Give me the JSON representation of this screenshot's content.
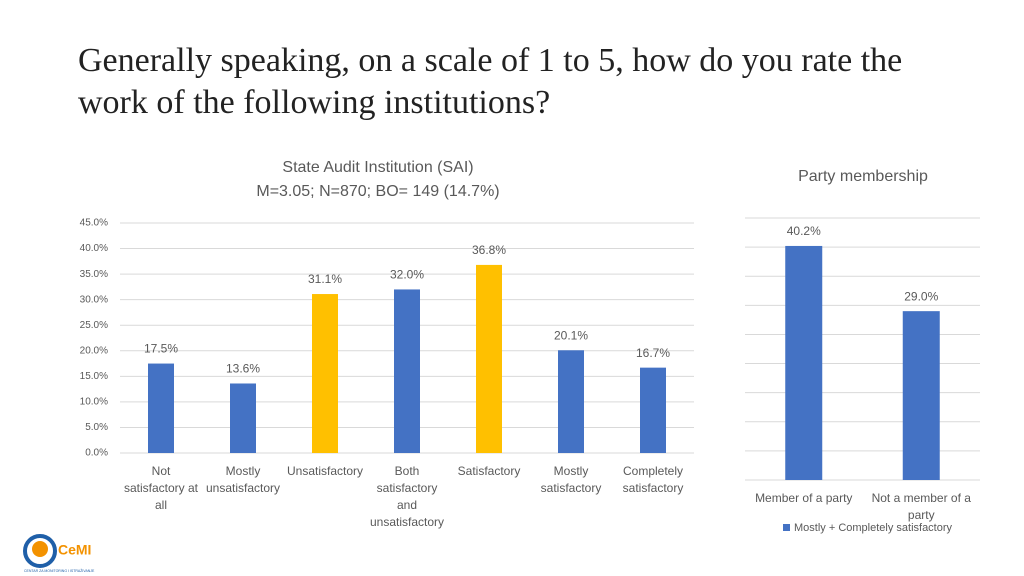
{
  "header": {
    "title": "Generally speaking, on a scale of 1 to 5, how do you rate the work of the following institutions?"
  },
  "logo": {
    "text": "CeMI",
    "tagline": "CENTAR ZA MONITORING I ISTRAŽIVANJE"
  },
  "chart_data": [
    {
      "type": "bar",
      "title": "State Audit Institution (SAI)",
      "subtitle": "M=3.05; N=870; BO= 149 (14.7%)",
      "categories": [
        "Not satisfactory at all",
        "Mostly unsatisfactory",
        "Unsatisfactory",
        "Both satisfactory and unsatisfactory",
        "Satisfactory",
        "Mostly satisfactory",
        "Completely satisfactory"
      ],
      "values": [
        17.5,
        13.6,
        31.1,
        32.0,
        36.8,
        20.1,
        16.7
      ],
      "value_labels": [
        "17.5%",
        "13.6%",
        "31.1%",
        "32.0%",
        "36.8%",
        "20.1%",
        "16.7%"
      ],
      "colors": [
        "#4472c4",
        "#4472c4",
        "#ffc000",
        "#4472c4",
        "#ffc000",
        "#4472c4",
        "#4472c4"
      ],
      "ylim": [
        0,
        45
      ],
      "yticks": [
        {
          "value": 0,
          "label": "0.0%"
        },
        {
          "value": 5,
          "label": "5.0%"
        },
        {
          "value": 10,
          "label": "10.0%"
        },
        {
          "value": 15,
          "label": "15.0%"
        },
        {
          "value": 20,
          "label": "20.0%"
        },
        {
          "value": 25,
          "label": "25.0%"
        },
        {
          "value": 30,
          "label": "30.0%"
        },
        {
          "value": 35,
          "label": "35.0%"
        },
        {
          "value": 40,
          "label": "40.0%"
        },
        {
          "value": 45,
          "label": "45.0%"
        }
      ],
      "grid": true
    },
    {
      "type": "bar",
      "title": "Party membership",
      "categories": [
        "Member of a party",
        "Not a member of a party"
      ],
      "series": [
        {
          "name": "Mostly + Completely satisfactory",
          "color": "#4472c4",
          "values": [
            40.2,
            29.0
          ],
          "value_labels": [
            "40.2%",
            "29.0%"
          ]
        }
      ],
      "ylim": [
        0,
        45
      ],
      "yticks": [
        0,
        5,
        10,
        15,
        20,
        25,
        30,
        35,
        40,
        45
      ],
      "tick_labels": false,
      "grid": true,
      "legend": "bottom"
    }
  ]
}
